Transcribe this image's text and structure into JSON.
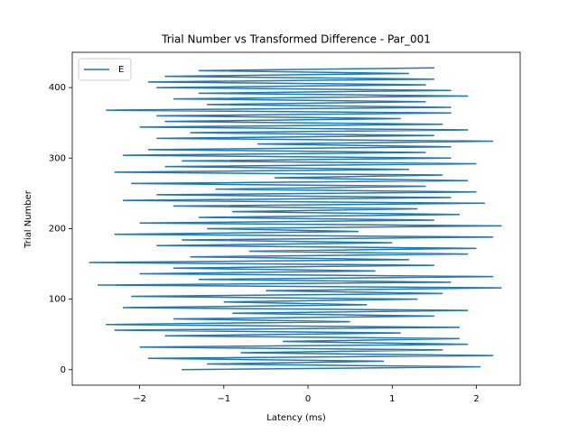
{
  "chart_data": {
    "type": "line",
    "title": "Trial Number vs Transformed Difference - Par_001",
    "x_label": "Latency (ms)",
    "y_label": "Trial Number",
    "x": [
      -1.5,
      2.05,
      -1.2,
      0.9,
      -1.9,
      2.2,
      -0.8,
      1.6,
      -2.0,
      1.9,
      -0.3,
      1.8,
      -1.7,
      1.1,
      -2.3,
      1.8,
      -2.4,
      0.5,
      -1.6,
      1.5,
      -0.9,
      1.9,
      -2.2,
      0.7,
      -1.0,
      1.3,
      -2.1,
      1.6,
      -0.5,
      2.3,
      -2.5,
      1.7,
      -1.3,
      2.2,
      -2.0,
      0.8,
      -1.6,
      1.5,
      -2.6,
      1.2,
      -1.4,
      1.9,
      -0.7,
      2.0,
      -1.8,
      1.0,
      -1.5,
      2.2,
      -2.3,
      0.6,
      -1.2,
      2.3,
      -2.0,
      1.5,
      -1.3,
      1.8,
      -0.9,
      1.3,
      -1.6,
      2.1,
      -2.2,
      1.7,
      -1.8,
      2.0,
      -1.1,
      1.4,
      -2.1,
      1.9,
      -0.4,
      1.6,
      -2.3,
      1.2,
      -1.7,
      2.0,
      -1.5,
      1.7,
      -2.2,
      1.4,
      -1.9,
      1.7,
      -0.6,
      2.2,
      -1.8,
      1.5,
      -1.4,
      1.9,
      -2.0,
      1.6,
      -1.7,
      1.1,
      -1.8,
      1.7,
      -2.4,
      1.7,
      -1.2,
      1.4,
      -1.6,
      1.9,
      -1.3,
      1.7,
      -1.8,
      1.4,
      -1.9,
      1.5,
      -1.7,
      1.2,
      -1.3,
      1.5
    ],
    "series": [
      {
        "name": "E",
        "color": "#1f77b4",
        "values": [
          0,
          4,
          8,
          12,
          16,
          20,
          24,
          28,
          32,
          36,
          40,
          44,
          48,
          52,
          56,
          60,
          64,
          68,
          72,
          76,
          80,
          84,
          88,
          92,
          96,
          100,
          104,
          108,
          112,
          116,
          120,
          124,
          128,
          132,
          136,
          140,
          144,
          148,
          152,
          156,
          160,
          164,
          168,
          172,
          176,
          180,
          184,
          188,
          192,
          196,
          200,
          204,
          208,
          212,
          216,
          220,
          224,
          228,
          232,
          236,
          240,
          244,
          248,
          252,
          256,
          260,
          264,
          268,
          272,
          276,
          280,
          284,
          288,
          292,
          296,
          300,
          304,
          308,
          312,
          316,
          320,
          324,
          328,
          332,
          336,
          340,
          344,
          348,
          352,
          356,
          360,
          364,
          368,
          372,
          376,
          380,
          384,
          388,
          392,
          396,
          400,
          404,
          408,
          412,
          416,
          420,
          424,
          428
        ]
      }
    ],
    "xlim": [
      -2.8,
      2.52
    ],
    "xticks": [
      {
        "value": -2,
        "label": "−2"
      },
      {
        "value": -1,
        "label": "−1"
      },
      0,
      1,
      2
    ],
    "ylim": [
      -22,
      450
    ],
    "yticks": [
      0,
      100,
      200,
      300,
      400
    ],
    "grid": false,
    "legend": "upper-left"
  }
}
